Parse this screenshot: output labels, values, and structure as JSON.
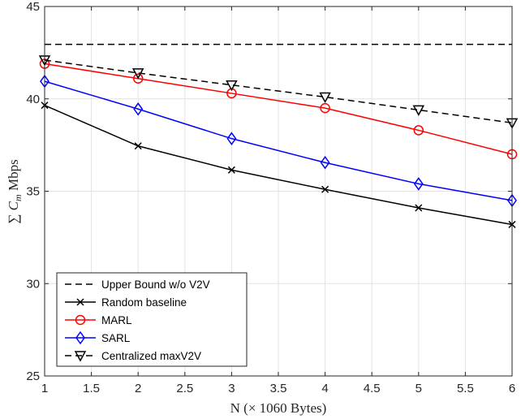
{
  "chart_data": {
    "type": "line",
    "x": [
      1,
      2,
      3,
      4,
      5,
      6
    ],
    "xlim": [
      1,
      6
    ],
    "ylim": [
      25,
      45
    ],
    "xticks": [
      "1",
      "1.5",
      "2",
      "2.5",
      "3",
      "3.5",
      "4",
      "4.5",
      "5",
      "5.5",
      "6"
    ],
    "yticks": [
      "25",
      "30",
      "35",
      "40",
      "45"
    ],
    "xlabel": "N (× 1060 Bytes)",
    "ylabel": "∑ C_m Mbps",
    "ylabel_main": "∑ C",
    "ylabel_sub": "m",
    "ylabel_unit": " Mbps",
    "grid": true,
    "legend_position": "bottom-left",
    "series": [
      {
        "name": "Upper Bound w/o V2V",
        "values": [
          42.95,
          42.95,
          42.95,
          42.95,
          42.95,
          42.95
        ],
        "color": "#000000",
        "dash": "dashed",
        "marker": "none"
      },
      {
        "name": "Random baseline",
        "values": [
          39.65,
          37.45,
          36.15,
          35.1,
          34.1,
          33.2
        ],
        "color": "#000000",
        "dash": "solid",
        "marker": "x"
      },
      {
        "name": "MARL",
        "values": [
          41.9,
          41.1,
          40.3,
          39.5,
          38.3,
          37.0
        ],
        "color": "#ff0000",
        "dash": "solid",
        "marker": "circle"
      },
      {
        "name": "SARL",
        "values": [
          40.95,
          39.45,
          37.85,
          36.55,
          35.4,
          34.5
        ],
        "color": "#0000ff",
        "dash": "solid",
        "marker": "diamond"
      },
      {
        "name": "Centralized maxV2V",
        "values": [
          42.1,
          41.4,
          40.75,
          40.1,
          39.4,
          38.7
        ],
        "color": "#000000",
        "dash": "dashed",
        "marker": "triangle-down"
      }
    ]
  }
}
